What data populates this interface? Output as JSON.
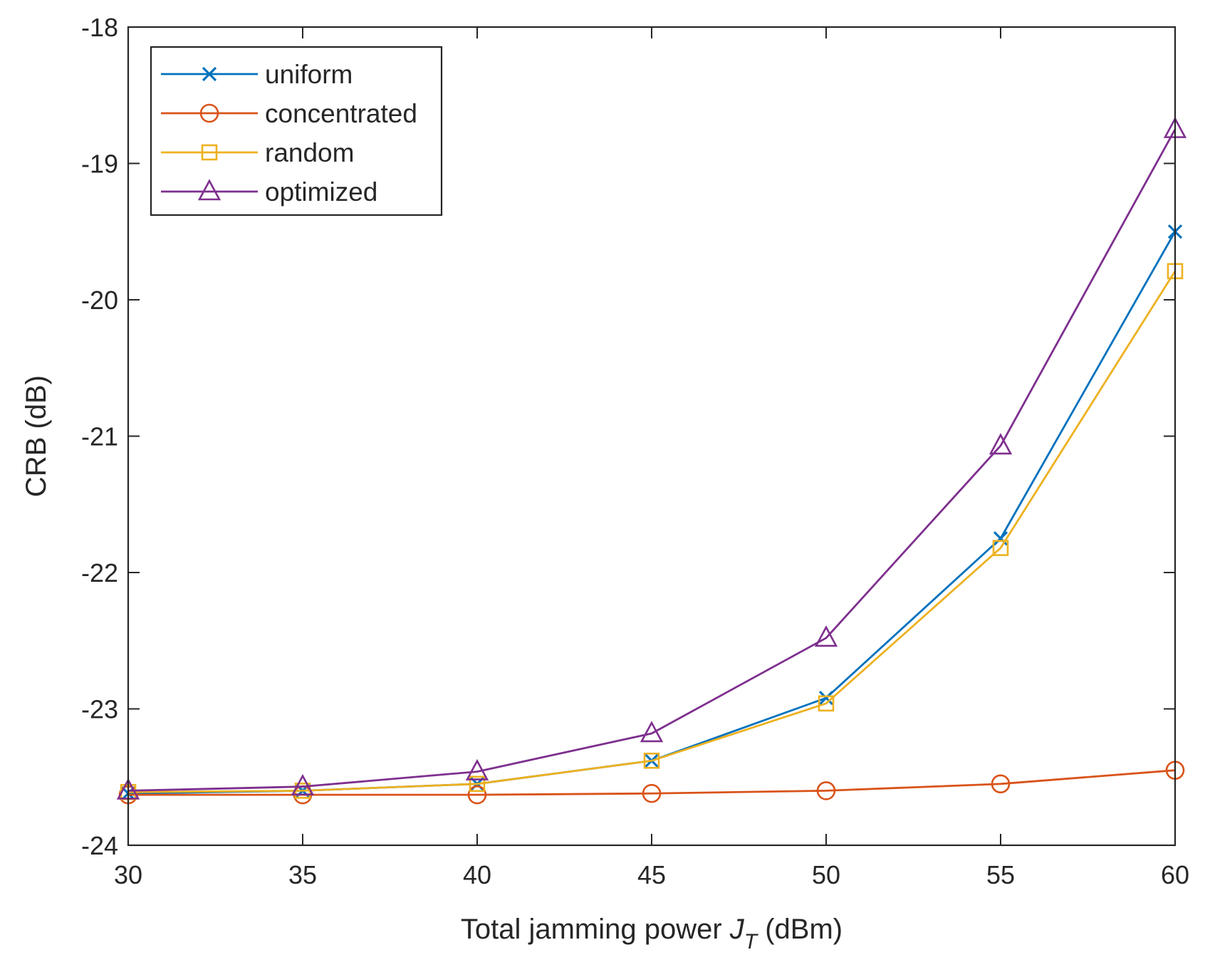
{
  "chart_data": {
    "type": "line",
    "title": "",
    "xlabel": {
      "main": "Total jamming power",
      "symbol": "J",
      "subscript": "T",
      "unit": "(dBm)"
    },
    "ylabel": "CRB (dB)",
    "xlim": [
      30,
      60
    ],
    "ylim": [
      -24,
      -18
    ],
    "xticks": [
      30,
      35,
      40,
      45,
      50,
      55,
      60
    ],
    "yticks": [
      -24,
      -23,
      -22,
      -21,
      -20,
      -19,
      -18
    ],
    "xtick_labels": [
      "30",
      "35",
      "40",
      "45",
      "50",
      "55",
      "60"
    ],
    "ytick_labels": [
      "-24",
      "-23",
      "-22",
      "-21",
      "-20",
      "-19",
      "-18"
    ],
    "grid": false,
    "legend_position": "top-left",
    "x": [
      30,
      35,
      40,
      45,
      50,
      55,
      60
    ],
    "series": [
      {
        "name": "uniform",
        "color": "#0072BD",
        "marker": "x",
        "values": [
          -23.62,
          -23.6,
          -23.55,
          -23.38,
          -22.92,
          -21.75,
          -19.5
        ]
      },
      {
        "name": "concentrated",
        "color": "#D95319",
        "marker": "circle",
        "values": [
          -23.63,
          -23.63,
          -23.63,
          -23.62,
          -23.6,
          -23.55,
          -23.45
        ]
      },
      {
        "name": "random",
        "color": "#EDB120",
        "marker": "square",
        "values": [
          -23.61,
          -23.6,
          -23.55,
          -23.38,
          -22.96,
          -21.82,
          -19.79
        ]
      },
      {
        "name": "optimized",
        "color": "#7E2F8E",
        "marker": "triangle",
        "values": [
          -23.6,
          -23.57,
          -23.46,
          -23.18,
          -22.48,
          -21.07,
          -18.75
        ]
      }
    ]
  }
}
